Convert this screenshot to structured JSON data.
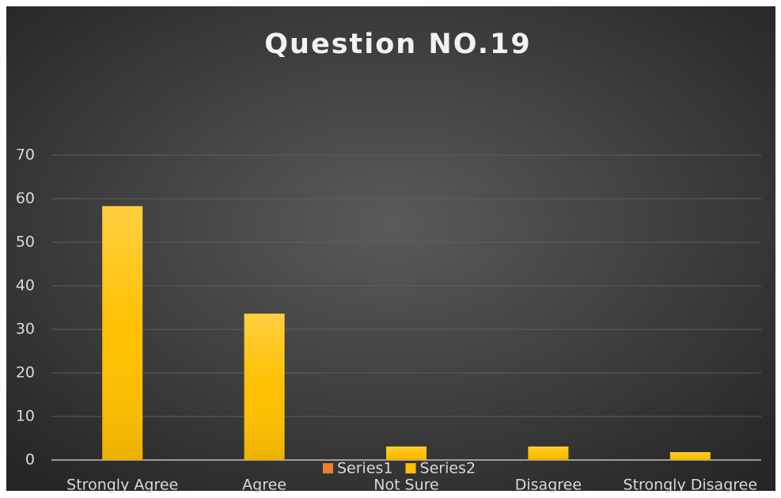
{
  "chart_data": {
    "type": "bar",
    "title": "Question NO.19",
    "categories": [
      "Strongly Agree",
      "Agree",
      "Not Sure",
      "Disagree",
      "Strongly Disagree"
    ],
    "series": [
      {
        "name": "Series1",
        "color": "#ed7d31",
        "values": [
          0,
          0,
          0,
          0,
          0
        ]
      },
      {
        "name": "Series2",
        "color": "#ffc000",
        "values": [
          58.3,
          33.6,
          3.1,
          3.1,
          1.8
        ]
      }
    ],
    "ylim": [
      0,
      70
    ],
    "yticks": [
      0,
      10,
      20,
      30,
      40,
      50,
      60,
      70
    ],
    "grid": true,
    "legend": "bottom"
  }
}
